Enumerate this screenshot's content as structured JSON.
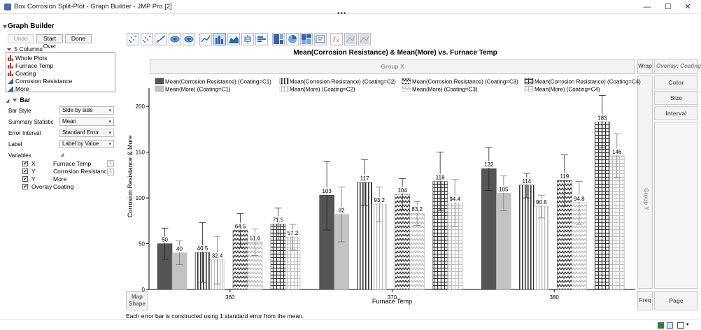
{
  "window": {
    "title": "Box Corrosion Split-Plot - Graph Builder - JMP Pro [2]",
    "controls": [
      "—",
      "☐",
      "✕"
    ]
  },
  "graph_builder": {
    "title": "Graph Builder",
    "buttons": {
      "undo": "Undo",
      "start_over": "Start Over",
      "done": "Done"
    }
  },
  "columns": {
    "header": "5 Columns",
    "items": [
      {
        "name": "Whole Plots",
        "icon": "nominal-bars-icon",
        "color": "#c0392b"
      },
      {
        "name": "Furnace Temp",
        "icon": "nominal-bars-icon",
        "color": "#c0392b"
      },
      {
        "name": "Coating",
        "icon": "nominal-bars-icon",
        "color": "#c0392b"
      },
      {
        "name": "Corrosion Resistance",
        "icon": "continuous-triangle-icon",
        "color": "#2f63b5"
      },
      {
        "name": "More",
        "icon": "continuous-triangle-icon",
        "color": "#2f63b5"
      }
    ]
  },
  "bar_panel": {
    "header": "Bar",
    "props": [
      {
        "label": "Bar Style",
        "value": "Side by side"
      },
      {
        "label": "Summary Statistic",
        "value": "Mean"
      },
      {
        "label": "Error Interval",
        "value": "Standard Error"
      },
      {
        "label": "Label",
        "value": "Label by Value"
      }
    ],
    "variables_label": "Variables",
    "variables": [
      {
        "role": "X",
        "name": "Furnace Temp"
      },
      {
        "role": "Y",
        "name": "Corrosion Resistance"
      },
      {
        "role": "Y",
        "name": "More"
      },
      {
        "role": "Overlay",
        "name": "Coating"
      }
    ]
  },
  "zones": {
    "group_x": "Group X",
    "group_y": "Group Y",
    "wrap": "Wrap",
    "overlay": "Overlay: Coating",
    "color": "Color",
    "size": "Size",
    "interval": "Interval",
    "map_shape": "Map Shape",
    "freq": "Freq",
    "page": "Page"
  },
  "footnote": "Each error bar is constructed using 1 standard error from the mean.",
  "chart_data": {
    "type": "bar",
    "title": "Mean(Corrosion Resistance) & Mean(More) vs. Furnace Temp",
    "xlabel": "Furnace Temp",
    "ylabel": "Corrosion Resistance & More",
    "categories": [
      "360",
      "370",
      "380"
    ],
    "ylim": [
      0,
      220
    ],
    "yticks": [
      0,
      50,
      100,
      150,
      200
    ],
    "series": [
      {
        "name": "Mean(Corrosion Resistance) (Coating=C1)",
        "pattern": "solid-dark",
        "values": [
          50,
          103,
          132
        ],
        "labels": [
          "50",
          "103",
          "132"
        ],
        "err_low": [
          33,
          65,
          108
        ],
        "err_high": [
          67,
          140,
          155
        ]
      },
      {
        "name": "Mean(More) (Coating=C1)",
        "pattern": "solid-light",
        "values": [
          40,
          82,
          105
        ],
        "labels": [
          "40",
          "82",
          "105"
        ],
        "err_low": [
          27,
          52,
          86
        ],
        "err_high": [
          53,
          112,
          124
        ]
      },
      {
        "name": "Mean(Corrosion Resistance) (Coating=C2)",
        "pattern": "vlines-dark",
        "values": [
          40.5,
          117,
          114
        ],
        "labels": [
          "40.5",
          "117",
          "114"
        ],
        "err_low": [
          8,
          92,
          100
        ],
        "err_high": [
          73,
          142,
          127
        ]
      },
      {
        "name": "Mean(More) (Coating=C2)",
        "pattern": "vlines-light",
        "values": [
          32.4,
          93.2,
          90.8
        ],
        "labels": [
          "32.4",
          "93.2",
          "90.8"
        ],
        "err_low": [
          6,
          74,
          78
        ],
        "err_high": [
          58,
          112,
          103
        ]
      },
      {
        "name": "Mean(Corrosion Resistance) (Coating=C3)",
        "pattern": "zigzag-dark",
        "values": [
          64.5,
          104,
          119
        ],
        "labels": [
          "64.5",
          "104",
          "119"
        ],
        "err_low": [
          46,
          87,
          91
        ],
        "err_high": [
          83,
          121,
          147
        ]
      },
      {
        "name": "Mean(More) (Coating=C3)",
        "pattern": "zigzag-light",
        "values": [
          51.6,
          83.2,
          94.8
        ],
        "labels": [
          "51.6",
          "83.2",
          "94.8"
        ],
        "err_low": [
          37,
          70,
          71
        ],
        "err_high": [
          66,
          96,
          118
        ]
      },
      {
        "name": "Mean(Corrosion Resistance) (Coating=C4)",
        "pattern": "grid-dark",
        "values": [
          71.5,
          118,
          183
        ],
        "labels": [
          "71.5",
          "118",
          "183"
        ],
        "err_low": [
          54,
          86,
          155
        ],
        "err_high": [
          89,
          150,
          212
        ]
      },
      {
        "name": "Mean(More) (Coating=C4)",
        "pattern": "grid-light",
        "values": [
          57.2,
          94.4,
          146
        ],
        "labels": [
          "57.2",
          "94.4",
          "146"
        ],
        "err_low": [
          43,
          69,
          122
        ],
        "err_high": [
          71,
          120,
          170
        ]
      }
    ],
    "legend_position": "top",
    "grid": false
  }
}
